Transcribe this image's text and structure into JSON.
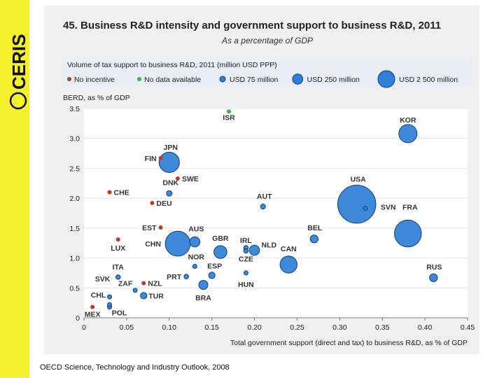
{
  "logo": {
    "text": "CERIS"
  },
  "footer": {
    "source": "OECD Science, Technology and Industry Outlook, 2008"
  },
  "colors": {
    "sidebar": "#f6f12e",
    "bubble": "#2e7fd6",
    "no_incentive": "#c0392b",
    "no_data": "#3cb043",
    "legend_bg": "#e9eef6"
  },
  "chart_data": {
    "type": "scatter",
    "title": "45. Business R&D intensity and government support to business R&D, 2011",
    "subtitle": "As a percentage of GDP",
    "xlabel": "Total government support (direct and tax) to business R&D, as % of GDP",
    "ylabel": "BERD, as % of GDP",
    "xlim": [
      0,
      0.45
    ],
    "ylim": [
      0,
      3.5
    ],
    "xticks": [
      "0",
      "0.05",
      "0.10",
      "0.15",
      "0.20",
      "0.25",
      "0.30",
      "0.35",
      "0.40",
      "0.45"
    ],
    "yticks": [
      "0",
      "0.5",
      "1.0",
      "1.5",
      "2.0",
      "2.5",
      "3.0",
      "3.5"
    ],
    "legend": {
      "title": "Volume of tax support to business R&D, 2011 (million USD PPP)",
      "placement": "top",
      "items": [
        {
          "label": "No incentive",
          "kind": "no_incentive"
        },
        {
          "label": "No data available",
          "kind": "no_data"
        },
        {
          "label": "USD 75 million",
          "kind": "bubble",
          "size": 75
        },
        {
          "label": "USD 250 million",
          "kind": "bubble",
          "size": 250
        },
        {
          "label": "USD 2 500 million",
          "kind": "bubble",
          "size": 2500
        }
      ]
    },
    "points": [
      {
        "label": "ISR",
        "x": 0.17,
        "y": 3.45,
        "kind": "no_data"
      },
      {
        "label": "KOR",
        "x": 0.38,
        "y": 3.08,
        "kind": "bubble",
        "size": 800
      },
      {
        "label": "JPN",
        "x": 0.1,
        "y": 2.6,
        "kind": "bubble",
        "size": 1000
      },
      {
        "label": "FIN",
        "x": 0.09,
        "y": 2.67,
        "kind": "no_incentive"
      },
      {
        "label": "SWE",
        "x": 0.11,
        "y": 2.33,
        "kind": "no_incentive"
      },
      {
        "label": "CHE",
        "x": 0.03,
        "y": 2.1,
        "kind": "no_incentive"
      },
      {
        "label": "DNK",
        "x": 0.1,
        "y": 2.08,
        "kind": "bubble",
        "size": 75
      },
      {
        "label": "DEU",
        "x": 0.08,
        "y": 1.92,
        "kind": "no_incentive"
      },
      {
        "label": "USA",
        "x": 0.32,
        "y": 1.9,
        "kind": "bubble",
        "size": 3500
      },
      {
        "label": "SVN",
        "x": 0.33,
        "y": 1.83,
        "kind": "bubble",
        "size": 30
      },
      {
        "label": "AUT",
        "x": 0.21,
        "y": 1.86,
        "kind": "bubble",
        "size": 60
      },
      {
        "label": "FRA",
        "x": 0.38,
        "y": 1.41,
        "kind": "bubble",
        "size": 1750
      },
      {
        "label": "EST",
        "x": 0.09,
        "y": 1.51,
        "kind": "no_incentive"
      },
      {
        "label": "LUX",
        "x": 0.04,
        "y": 1.31,
        "kind": "no_incentive"
      },
      {
        "label": "CHN",
        "x": 0.11,
        "y": 1.24,
        "kind": "bubble",
        "size": 1500
      },
      {
        "label": "AUS",
        "x": 0.13,
        "y": 1.27,
        "kind": "bubble",
        "size": 250
      },
      {
        "label": "GBR",
        "x": 0.16,
        "y": 1.1,
        "kind": "bubble",
        "size": 400
      },
      {
        "label": "IRL",
        "x": 0.19,
        "y": 1.17,
        "kind": "bubble",
        "size": 50
      },
      {
        "label": "NLD",
        "x": 0.2,
        "y": 1.13,
        "kind": "bubble",
        "size": 250
      },
      {
        "label": "CZE",
        "x": 0.19,
        "y": 1.12,
        "kind": "bubble",
        "size": 50
      },
      {
        "label": "BEL",
        "x": 0.27,
        "y": 1.32,
        "kind": "bubble",
        "size": 150
      },
      {
        "label": "CAN",
        "x": 0.24,
        "y": 0.89,
        "kind": "bubble",
        "size": 700
      },
      {
        "label": "NOR",
        "x": 0.13,
        "y": 0.86,
        "kind": "bubble",
        "size": 40
      },
      {
        "label": "ESP",
        "x": 0.15,
        "y": 0.71,
        "kind": "bubble",
        "size": 100
      },
      {
        "label": "PRT",
        "x": 0.12,
        "y": 0.69,
        "kind": "bubble",
        "size": 50
      },
      {
        "label": "HUN",
        "x": 0.19,
        "y": 0.75,
        "kind": "bubble",
        "size": 40
      },
      {
        "label": "ITA",
        "x": 0.04,
        "y": 0.68,
        "kind": "bubble",
        "size": 50
      },
      {
        "label": "RUS",
        "x": 0.41,
        "y": 0.67,
        "kind": "bubble",
        "size": 150
      },
      {
        "label": "NZL",
        "x": 0.07,
        "y": 0.58,
        "kind": "no_incentive"
      },
      {
        "label": "BRA",
        "x": 0.14,
        "y": 0.55,
        "kind": "bubble",
        "size": 200
      },
      {
        "label": "SVK",
        "x": 0.03,
        "y": 0.35,
        "kind": "bubble",
        "size": 20
      },
      {
        "label": "ZAF",
        "x": 0.06,
        "y": 0.46,
        "kind": "bubble",
        "size": 30
      },
      {
        "label": "TUR",
        "x": 0.07,
        "y": 0.37,
        "kind": "bubble",
        "size": 100
      },
      {
        "label": "CHL",
        "x": 0.03,
        "y": 0.22,
        "kind": "bubble",
        "size": 20
      },
      {
        "label": "POL",
        "x": 0.03,
        "y": 0.18,
        "kind": "bubble",
        "size": 30
      },
      {
        "label": "MEX",
        "x": 0.01,
        "y": 0.18,
        "kind": "no_incentive"
      }
    ]
  }
}
